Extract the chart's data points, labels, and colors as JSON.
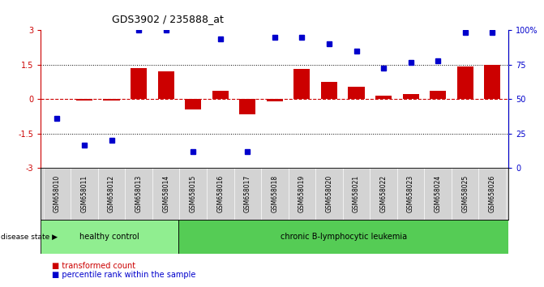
{
  "title": "GDS3902 / 235888_at",
  "samples": [
    "GSM658010",
    "GSM658011",
    "GSM658012",
    "GSM658013",
    "GSM658014",
    "GSM658015",
    "GSM658016",
    "GSM658017",
    "GSM658018",
    "GSM658019",
    "GSM658020",
    "GSM658021",
    "GSM658022",
    "GSM658023",
    "GSM658024",
    "GSM658025",
    "GSM658026"
  ],
  "bar_values": [
    0.0,
    -0.05,
    -0.05,
    1.35,
    1.2,
    -0.45,
    0.35,
    -0.65,
    -0.1,
    1.3,
    0.75,
    0.55,
    0.15,
    0.2,
    0.35,
    1.4,
    1.5
  ],
  "dot_values_left": [
    -0.85,
    -2.0,
    -1.8,
    3.0,
    3.0,
    -2.3,
    2.6,
    -2.3,
    2.7,
    2.7,
    2.4,
    2.1,
    1.35,
    1.6,
    1.65,
    2.9,
    2.9
  ],
  "bar_color": "#cc0000",
  "dot_color": "#0000cc",
  "healthy_control_count": 5,
  "group1_label": "healthy control",
  "group2_label": "chronic B-lymphocytic leukemia",
  "disease_state_label": "disease state",
  "legend1": "transformed count",
  "legend2": "percentile rank within the sample",
  "bg_color": "#ffffff",
  "label_bg": "#d3d3d3",
  "hc_color": "#90ee90",
  "leuk_color": "#55cc55"
}
